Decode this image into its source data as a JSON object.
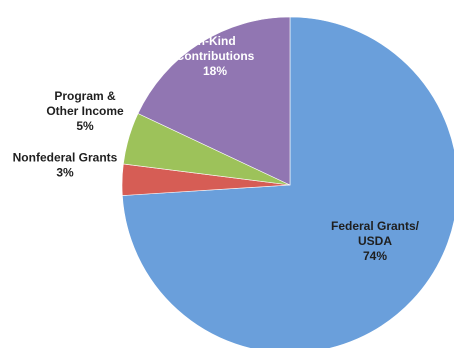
{
  "chart_data": {
    "type": "pie",
    "slices": [
      {
        "label_lines": [
          "Federal Grants/",
          "USDA"
        ],
        "pct_text": "74%",
        "value": 74,
        "color": "#6a9fdb",
        "label_color": "#1f1f1f"
      },
      {
        "label_lines": [
          "Nonfederal Grants"
        ],
        "pct_text": "3%",
        "value": 3,
        "color": "#d65d55",
        "label_color": "#1f1f1f"
      },
      {
        "label_lines": [
          "Program &",
          "Other Income"
        ],
        "pct_text": "5%",
        "value": 5,
        "color": "#9dc25a",
        "label_color": "#1f1f1f"
      },
      {
        "label_lines": [
          "In-Kind",
          "Contributions"
        ],
        "pct_text": "18%",
        "value": 18,
        "color": "#9176b2",
        "label_color": "#ffffff"
      }
    ]
  }
}
